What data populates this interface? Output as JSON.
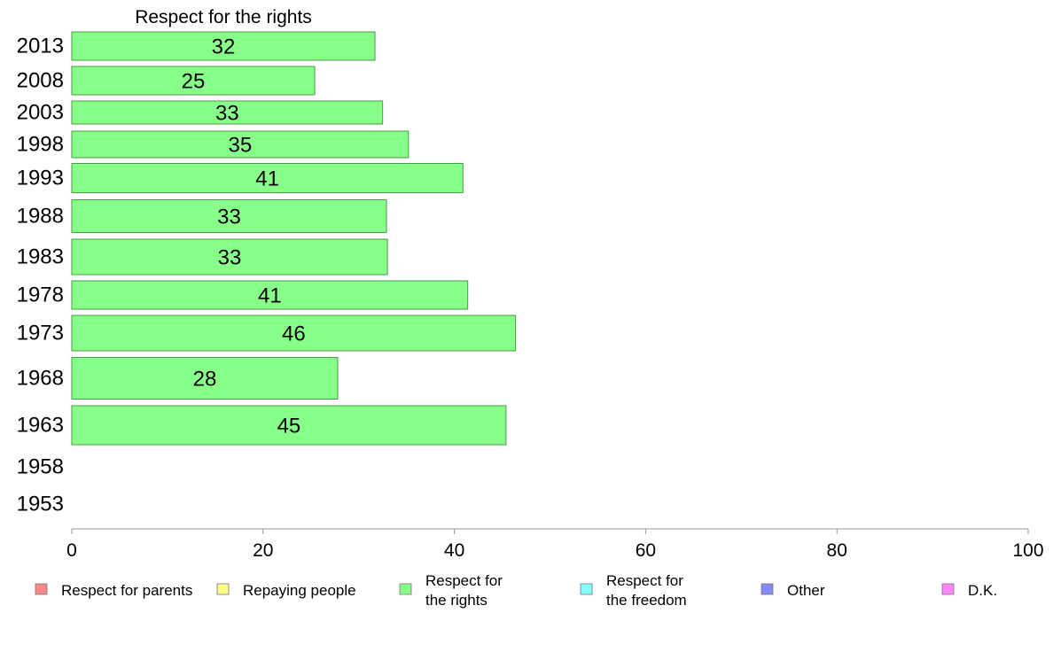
{
  "chart_data": {
    "type": "bar",
    "orientation": "horizontal",
    "title": "Respect for the rights",
    "categories": [
      "2013",
      "2008",
      "2003",
      "1998",
      "1993",
      "1988",
      "1983",
      "1978",
      "1973",
      "1968",
      "1963",
      "1958",
      "1953"
    ],
    "values": [
      31.7,
      25.4,
      32.5,
      35.2,
      40.9,
      32.9,
      33.0,
      41.4,
      46.4,
      27.8,
      45.4,
      null,
      null
    ],
    "value_labels": [
      "32",
      "25",
      "33",
      "35",
      "41",
      "33",
      "33",
      "41",
      "46",
      "28",
      "45",
      "",
      ""
    ],
    "xlim": [
      0,
      100
    ],
    "xticks": [
      "0",
      "20",
      "40",
      "60",
      "80",
      "100"
    ],
    "grid": false,
    "bar_color": "#88ff88",
    "legend_position": "bottom",
    "legend": [
      {
        "label": [
          "Respect for parents"
        ],
        "color": "#ff8888"
      },
      {
        "label": [
          "Repaying people"
        ],
        "color": "#ffff88"
      },
      {
        "label": [
          "Respect for",
          "the rights"
        ],
        "color": "#88ff88"
      },
      {
        "label": [
          "Respect for",
          "the freedom"
        ],
        "color": "#88ffff"
      },
      {
        "label": [
          "Other"
        ],
        "color": "#8888ff"
      },
      {
        "label": [
          "D.K."
        ],
        "color": "#ff88ff"
      }
    ]
  }
}
